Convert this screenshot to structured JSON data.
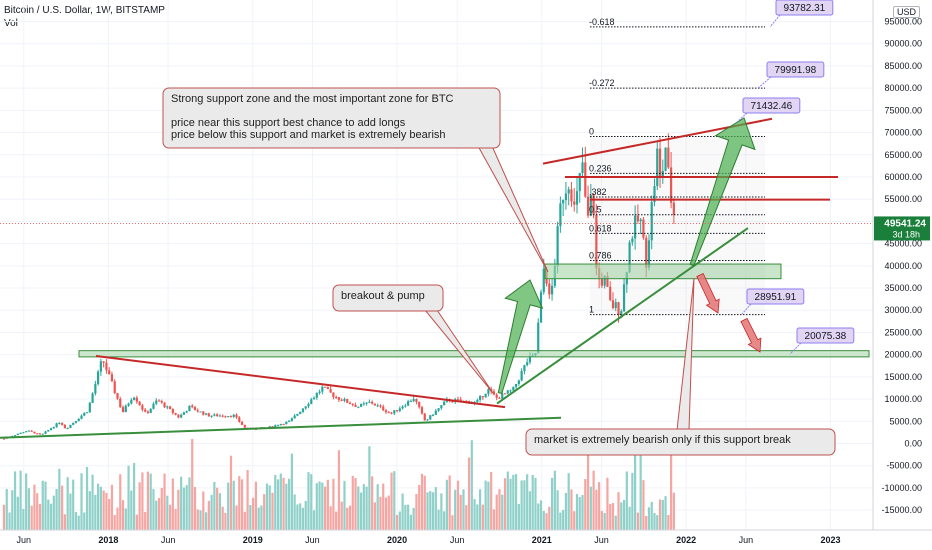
{
  "header": {
    "title": "Bitcoin / U.S. Dollar, 1W, BITSTAMP",
    "vol_label": "Vol",
    "currency": "USD"
  },
  "price_badge": {
    "price": "49541.24",
    "countdown": "3d 18h"
  },
  "colors": {
    "up": "#26a69a",
    "down": "#ef5350",
    "vol_up": "#8fd0c9",
    "vol_down": "#f5a5a2",
    "trend_red": "#c62828",
    "trend_green": "#388e3c",
    "zone_fill": "#a5d6a7",
    "arrow_green": "#4caf50",
    "arrow_red": "#e57373",
    "label_bg": "#e1d5f3",
    "label_border": "#8f7ff0"
  },
  "chart_data": {
    "type": "candlestick",
    "title": "Bitcoin / U.S. Dollar, 1W, BITSTAMP",
    "x_ticks": [
      "Jun",
      "2018",
      "Jun",
      "2019",
      "Jun",
      "2020",
      "Jun",
      "2021",
      "Jun",
      "2022",
      "Jun",
      "2023"
    ],
    "y_ticks": [
      95000,
      90000,
      85000,
      80000,
      75000,
      70000,
      65000,
      60000,
      55000,
      50000,
      45000,
      40000,
      35000,
      30000,
      25000,
      20000,
      15000,
      10000,
      5000,
      0,
      -5000,
      -10000,
      -15000
    ],
    "y_tick_labels": [
      "95000.00",
      "90000.00",
      "85000.00",
      "80000.00",
      "75000.00",
      "70000.00",
      "65000.00",
      "60000.00",
      "55000.00",
      "50000.00",
      "45000.00",
      "40000.00",
      "35000.00",
      "30000.00",
      "25000.00",
      "20000.00",
      "15000.00",
      "10000.00",
      "5000.00",
      "0.00",
      "-5000.00",
      "-10000.00",
      "-15000.00"
    ],
    "ylim": [
      -17500,
      100000
    ],
    "grid": true,
    "legend": "none",
    "key_points": [
      {
        "date": "2017-12-17",
        "high": 19700
      },
      {
        "date": "2018-12-15",
        "low": 3200
      },
      {
        "date": "2019-06-26",
        "high": 13800
      },
      {
        "date": "2020-03-12",
        "low": 3900
      },
      {
        "date": "2021-04-14",
        "high": 64800
      },
      {
        "date": "2021-07-20",
        "low": 29000
      },
      {
        "date": "2021-11-10",
        "high": 69000
      },
      {
        "date": "2021-12-06",
        "last": 49541.24
      }
    ],
    "fib_levels": [
      {
        "label": "-0.618",
        "price": 93782.31
      },
      {
        "label": "-0.272",
        "price": 79991.98
      },
      {
        "label": "0",
        "price": 69100
      },
      {
        "label": "0.236",
        "price": 60800
      },
      {
        "label": ".382",
        "price": 55500
      },
      {
        "label": "0.5",
        "price": 51500
      },
      {
        "label": "0.618",
        "price": 47300
      },
      {
        "label": "0.786",
        "price": 41200
      },
      {
        "label": "1",
        "price": 29000
      }
    ],
    "price_labels": [
      "93782.31",
      "79991.98",
      "71432.46",
      "28951.91",
      "20075.38"
    ],
    "annotations": [
      {
        "id": "support",
        "lines": [
          "Strong support zone and the most important zone for BTC",
          "",
          "price near this support best chance to add longs",
          "price below this support and market is extremely bearish"
        ]
      },
      {
        "id": "breakout",
        "lines": [
          "breakout & pump"
        ]
      },
      {
        "id": "bearish",
        "lines": [
          "market is extremely bearish only if this support break"
        ]
      }
    ]
  }
}
